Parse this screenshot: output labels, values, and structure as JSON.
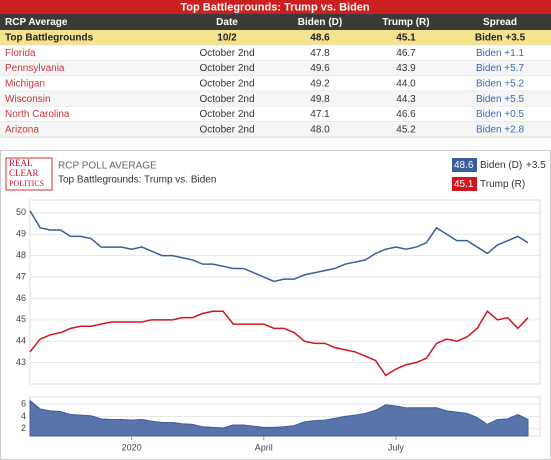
{
  "table": {
    "title": "Top Battlegrounds: Trump vs. Biden",
    "header": [
      "RCP Average",
      "Date",
      "Biden (D)",
      "Trump (R)",
      "Spread"
    ],
    "rows": [
      [
        "Top Battlegrounds",
        "10/2",
        "48.6",
        "45.1",
        "Biden +3.5"
      ],
      [
        "Florida",
        "October 2nd",
        "47.8",
        "46.7",
        "Biden +1.1"
      ],
      [
        "Pennsylvania",
        "October 2nd",
        "49.6",
        "43.9",
        "Biden +5.7"
      ],
      [
        "Michigan",
        "October 2nd",
        "49.2",
        "44.0",
        "Biden +5.2"
      ],
      [
        "Wisconsin",
        "October 2nd",
        "49.8",
        "44.3",
        "Biden +5.5"
      ],
      [
        "North Carolina",
        "October 2nd",
        "47.1",
        "46.6",
        "Biden +0.5"
      ],
      [
        "Arizona",
        "October 2nd",
        "48.0",
        "45.2",
        "Biden +2.8"
      ]
    ]
  },
  "logo": [
    "REAL",
    "CLEAR",
    "POLITICS"
  ],
  "chart_data": [
    {
      "type": "line",
      "kicker": "RCP POLL AVERAGE",
      "title": "Top Battlegrounds: Trump vs. Biden",
      "categories": [
        null,
        null,
        null,
        null,
        null,
        null,
        null,
        null,
        null,
        null,
        "2020",
        null,
        null,
        null,
        null,
        null,
        null,
        null,
        null,
        null,
        null,
        null,
        null,
        "April",
        null,
        null,
        null,
        null,
        null,
        null,
        null,
        null,
        null,
        null,
        null,
        null,
        "July",
        null,
        null,
        null,
        null,
        null,
        null,
        null,
        null,
        null,
        null,
        null,
        null,
        null
      ],
      "series": [
        {
          "name": "Biden (D)",
          "color": "#3b5d9c",
          "legend_value": "48.6",
          "spread": "+3.5",
          "values": [
            50.1,
            49.3,
            49.2,
            49.2,
            48.9,
            48.9,
            48.8,
            48.4,
            48.4,
            48.4,
            48.3,
            48.4,
            48.2,
            48.0,
            48.0,
            47.9,
            47.8,
            47.6,
            47.6,
            47.5,
            47.4,
            47.4,
            47.2,
            47.0,
            46.8,
            46.9,
            46.9,
            47.1,
            47.2,
            47.3,
            47.4,
            47.6,
            47.7,
            47.8,
            48.1,
            48.3,
            48.4,
            48.3,
            48.4,
            48.6,
            49.3,
            49.0,
            48.7,
            48.7,
            48.4,
            48.1,
            48.5,
            48.7,
            48.9,
            48.6
          ]
        },
        {
          "name": "Trump (R)",
          "color": "#d0161f",
          "legend_value": "45.1",
          "values": [
            43.5,
            44.1,
            44.3,
            44.4,
            44.6,
            44.7,
            44.7,
            44.8,
            44.9,
            44.9,
            44.9,
            44.9,
            45.0,
            45.0,
            45.0,
            45.1,
            45.1,
            45.3,
            45.4,
            45.4,
            44.8,
            44.8,
            44.8,
            44.8,
            44.6,
            44.6,
            44.4,
            44.0,
            43.9,
            43.9,
            43.7,
            43.6,
            43.5,
            43.3,
            43.1,
            42.4,
            42.7,
            42.9,
            43.0,
            43.2,
            43.9,
            44.1,
            44.0,
            44.2,
            44.6,
            45.4,
            45.0,
            45.1,
            44.6,
            45.1
          ]
        }
      ],
      "ylim": [
        42,
        50.6
      ],
      "yticks": [
        43,
        44,
        45,
        46,
        47,
        48,
        49,
        50
      ],
      "grid": true
    },
    {
      "type": "area",
      "color": "#3b5d9c",
      "values": [
        6.6,
        5.2,
        4.9,
        4.8,
        4.3,
        4.2,
        4.1,
        3.6,
        3.5,
        3.5,
        3.4,
        3.5,
        3.2,
        3.0,
        3.0,
        2.8,
        2.7,
        2.3,
        2.2,
        2.1,
        2.6,
        2.6,
        2.4,
        2.2,
        2.2,
        2.3,
        2.5,
        3.1,
        3.3,
        3.4,
        3.7,
        4.0,
        4.2,
        4.5,
        5.0,
        5.9,
        5.7,
        5.4,
        5.4,
        5.4,
        5.4,
        4.9,
        4.7,
        4.5,
        3.8,
        2.7,
        3.5,
        3.6,
        4.3,
        3.5
      ],
      "ylim": [
        0.8,
        7
      ],
      "yticks": [
        2,
        4,
        6
      ]
    }
  ]
}
